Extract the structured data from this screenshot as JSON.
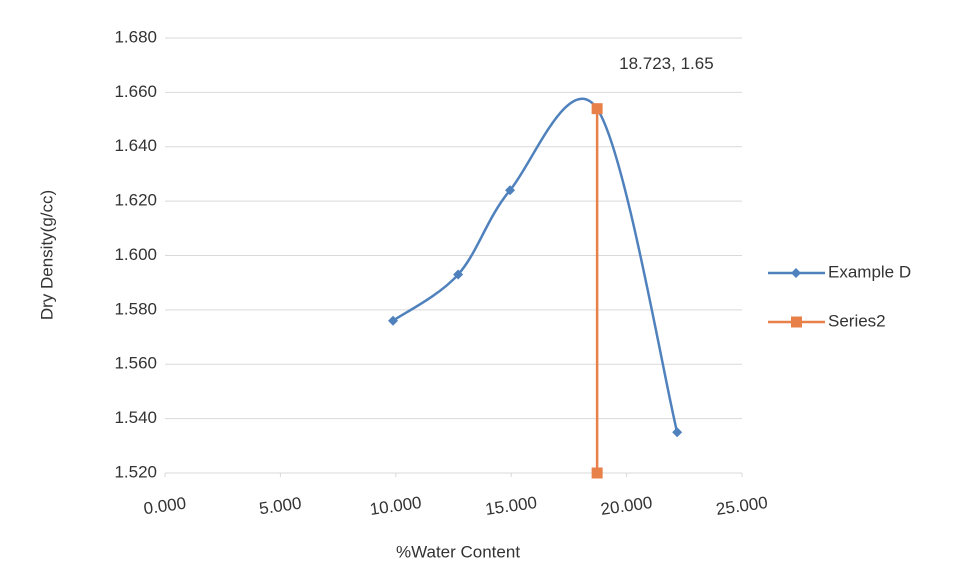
{
  "chart_data": {
    "type": "scatter",
    "smooth": true,
    "x_label": "%Water Content",
    "y_label": "Dry Density(g/cc)",
    "xlim": [
      0,
      25
    ],
    "ylim": [
      1.52,
      1.68
    ],
    "xticks": [
      {
        "value": 0,
        "label": "0.000"
      },
      {
        "value": 5,
        "label": "5.000"
      },
      {
        "value": 10,
        "label": "10.000"
      },
      {
        "value": 15,
        "label": "15.000"
      },
      {
        "value": 20,
        "label": "20.000"
      },
      {
        "value": 25,
        "label": "25.000"
      }
    ],
    "yticks": [
      {
        "value": 1.52,
        "label": "1.520"
      },
      {
        "value": 1.54,
        "label": "1.540"
      },
      {
        "value": 1.56,
        "label": "1.560"
      },
      {
        "value": 1.58,
        "label": "1.580"
      },
      {
        "value": 1.6,
        "label": "1.600"
      },
      {
        "value": 1.62,
        "label": "1.620"
      },
      {
        "value": 1.64,
        "label": "1.640"
      },
      {
        "value": 1.66,
        "label": "1.660"
      },
      {
        "value": 1.68,
        "label": "1.680"
      }
    ],
    "grid": true,
    "legend": "right",
    "series": [
      {
        "name": "Example D",
        "color": "#4f81bd",
        "marker": "diamond",
        "x": [
          9.88,
          12.7,
          14.95,
          18.72,
          22.19
        ],
        "values": [
          1.576,
          1.593,
          1.624,
          1.654,
          1.535
        ]
      },
      {
        "name": "Series2",
        "color": "#e8804a",
        "marker": "square",
        "smooth": false,
        "x": [
          18.723,
          18.723
        ],
        "values": [
          1.654,
          1.52
        ],
        "value_labels": [
          "18.723, 1.65",
          null
        ]
      }
    ]
  }
}
